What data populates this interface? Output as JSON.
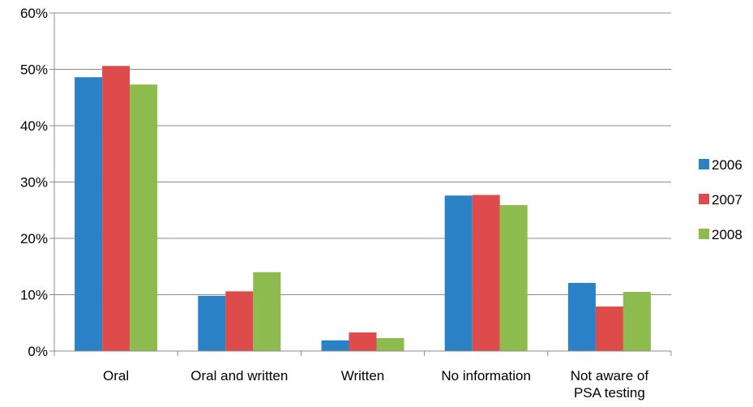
{
  "chart_data": {
    "type": "bar",
    "categories": [
      [
        "Oral"
      ],
      [
        "Oral and written"
      ],
      [
        "Written"
      ],
      [
        "No information"
      ],
      [
        "Not aware of",
        "PSA testing"
      ]
    ],
    "series": [
      {
        "name": "2006",
        "color": "#2a81c5",
        "values": [
          48.6,
          9.8,
          1.9,
          27.6,
          12.1
        ]
      },
      {
        "name": "2007",
        "color": "#dd4b4a",
        "values": [
          50.6,
          10.6,
          3.3,
          27.7,
          7.9
        ]
      },
      {
        "name": "2008",
        "color": "#8dbb4e",
        "values": [
          47.3,
          14.0,
          2.3,
          25.9,
          10.5
        ]
      }
    ],
    "ylim": [
      0,
      60
    ],
    "yticks": [
      0,
      10,
      20,
      30,
      40,
      50,
      60
    ],
    "ytick_labels": [
      "0%",
      "10%",
      "20%",
      "30%",
      "40%",
      "50%",
      "60%"
    ],
    "grid": true,
    "legend_position": "right"
  }
}
